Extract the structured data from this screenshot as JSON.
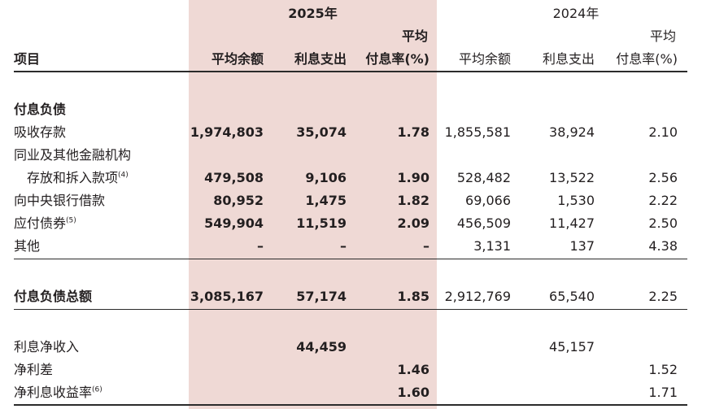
{
  "header": {
    "year_2025": "2025年",
    "year_2024": "2024年",
    "item": "项目",
    "avg_balance": "平均余额",
    "interest_expense": "利息支出",
    "avg_top": "平均",
    "rate_pct": "付息率(%)"
  },
  "section_title": "付息负债",
  "rows": [
    {
      "label": "吸收存款",
      "sup": "",
      "v25": [
        "1,974,803",
        "35,074",
        "1.78"
      ],
      "v24": [
        "1,855,581",
        "38,924",
        "2.10"
      ]
    },
    {
      "label": "同业及其他金融机构",
      "sup": "",
      "v25": [
        "",
        "",
        ""
      ],
      "v24": [
        "",
        "",
        ""
      ]
    },
    {
      "label": "存放和拆入款项",
      "sup": "(4)",
      "v25": [
        "479,508",
        "9,106",
        "1.90"
      ],
      "v24": [
        "528,482",
        "13,522",
        "2.56"
      ]
    },
    {
      "label": "向中央银行借款",
      "sup": "",
      "v25": [
        "80,952",
        "1,475",
        "1.82"
      ],
      "v24": [
        "69,066",
        "1,530",
        "2.22"
      ]
    },
    {
      "label": "应付债券",
      "sup": "(5)",
      "v25": [
        "549,904",
        "11,519",
        "2.09"
      ],
      "v24": [
        "456,509",
        "11,427",
        "2.50"
      ]
    },
    {
      "label": "其他",
      "sup": "",
      "v25": [
        "–",
        "–",
        "–"
      ],
      "v24": [
        "3,131",
        "137",
        "4.38"
      ]
    }
  ],
  "total": {
    "label": "付息负债总额",
    "v25": [
      "3,085,167",
      "57,174",
      "1.85"
    ],
    "v24": [
      "2,912,769",
      "65,540",
      "2.25"
    ]
  },
  "net_interest_income": {
    "label": "利息净收入",
    "v25": "44,459",
    "v24": "45,157"
  },
  "net_spread": {
    "label": "净利差",
    "v25": "1.46",
    "v24": "1.52"
  },
  "net_margin": {
    "label": "净利息收益率",
    "sup": "(6)",
    "v25": "1.60",
    "v24": "1.71"
  }
}
